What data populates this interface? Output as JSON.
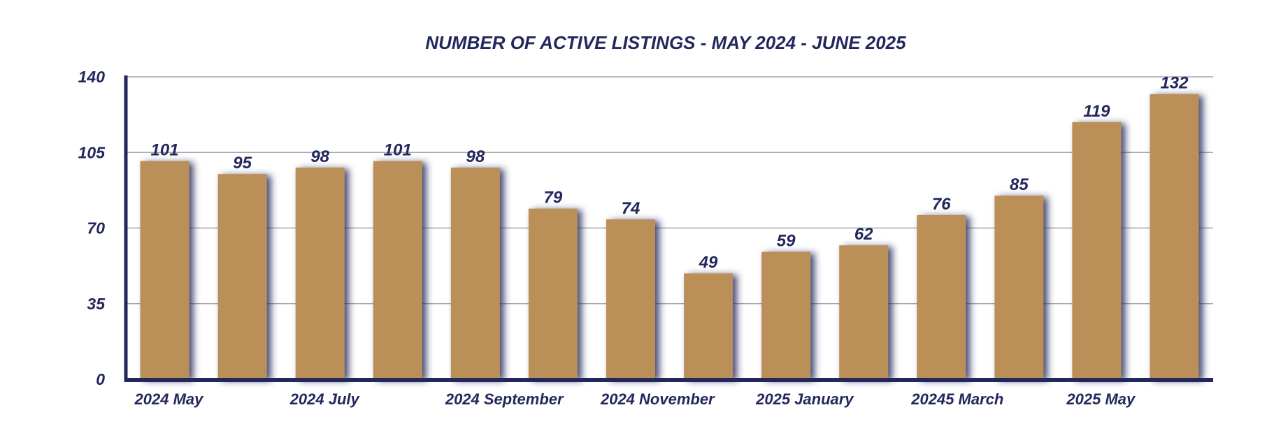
{
  "chart_data": {
    "type": "bar",
    "title": "NUMBER OF ACTIVE LISTINGS - MAY 2024 - JUNE 2025",
    "xlabel": "",
    "ylabel": "",
    "categories": [
      "2024 May",
      "",
      "2024 July",
      "",
      "2024 September",
      "",
      "2024 November",
      "",
      "2025 January",
      "",
      "20245 March",
      "",
      "2025 May",
      ""
    ],
    "values": [
      101,
      95,
      98,
      101,
      98,
      79,
      74,
      49,
      59,
      62,
      76,
      85,
      119,
      132
    ],
    "ylim": [
      0,
      140
    ],
    "yticks": [
      0,
      35,
      70,
      105,
      140
    ],
    "grid": true,
    "legend": "none",
    "colors": {
      "bar": "#BB8F58",
      "bar_shadow": "#23285C",
      "text": "#23285C",
      "axis": "#23285C",
      "grid": "#A6A6A6"
    }
  }
}
